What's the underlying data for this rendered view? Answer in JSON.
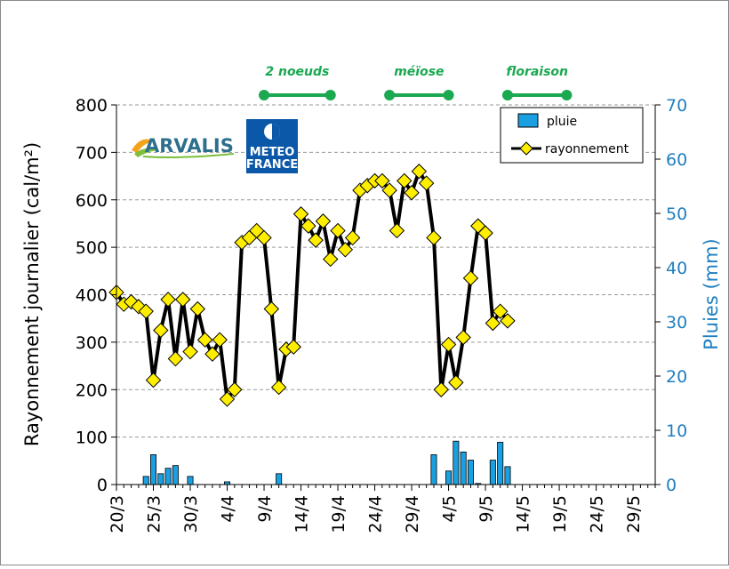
{
  "chart_data": {
    "type": "bar+line",
    "x_ticks": [
      "20/3",
      "25/3",
      "30/3",
      "4/4",
      "9/4",
      "14/4",
      "19/4",
      "24/4",
      "29/4",
      "4/5",
      "9/5",
      "14/5",
      "19/5",
      "24/5",
      "29/5"
    ],
    "ylabel_left": "Rayonnement journalier (cal/m²)",
    "ylabel_right": "Pluies (mm)",
    "ylim_left": [
      0,
      800
    ],
    "yticks_left": [
      0,
      100,
      200,
      300,
      400,
      500,
      600,
      700,
      800
    ],
    "ylim_right": [
      0,
      70
    ],
    "yticks_right": [
      0,
      10,
      20,
      30,
      40,
      50,
      60,
      70
    ],
    "x_range_days": [
      0,
      73
    ],
    "legend": {
      "placement": "top-right",
      "entries": [
        "pluie",
        "rayonnement"
      ]
    },
    "colors": {
      "bar": "#1aa0e0",
      "line": "#000000",
      "marker": "#ffee00",
      "stage": "#1aa850",
      "right_axis": "#1f7fc0"
    },
    "stages": [
      {
        "label": "2 noeuds",
        "start": 20,
        "end": 29
      },
      {
        "label": "méïose",
        "start": 37,
        "end": 45
      },
      {
        "label": "floraison",
        "start": 53,
        "end": 61
      }
    ],
    "series": [
      {
        "name": "pluie",
        "kind": "bar",
        "axis": "right",
        "points": [
          [
            4,
            1.5
          ],
          [
            5,
            5.5
          ],
          [
            6,
            2
          ],
          [
            7,
            3
          ],
          [
            8,
            3.5
          ],
          [
            10,
            1.5
          ],
          [
            15,
            0.5
          ],
          [
            22,
            2
          ],
          [
            43,
            5.5
          ],
          [
            45,
            2.5
          ],
          [
            46,
            8
          ],
          [
            47,
            6
          ],
          [
            48,
            4.5
          ],
          [
            49,
            0.2
          ],
          [
            51,
            4.5
          ],
          [
            52,
            7.8
          ],
          [
            53,
            3.3
          ]
        ]
      },
      {
        "name": "rayonnement",
        "kind": "line",
        "axis": "left",
        "points": [
          [
            0,
            405
          ],
          [
            1,
            380
          ],
          [
            2,
            385
          ],
          [
            3,
            375
          ],
          [
            4,
            365
          ],
          [
            5,
            220
          ],
          [
            6,
            325
          ],
          [
            7,
            390
          ],
          [
            8,
            265
          ],
          [
            9,
            390
          ],
          [
            10,
            280
          ],
          [
            11,
            370
          ],
          [
            12,
            305
          ],
          [
            13,
            275
          ],
          [
            14,
            305
          ],
          [
            15,
            180
          ],
          [
            16,
            200
          ],
          [
            17,
            510
          ],
          [
            18,
            520
          ],
          [
            19,
            535
          ],
          [
            20,
            520
          ],
          [
            21,
            370
          ],
          [
            22,
            205
          ],
          [
            23,
            285
          ],
          [
            24,
            290
          ],
          [
            25,
            570
          ],
          [
            26,
            545
          ],
          [
            27,
            515
          ],
          [
            28,
            555
          ],
          [
            29,
            475
          ],
          [
            30,
            535
          ],
          [
            31,
            495
          ],
          [
            32,
            520
          ],
          [
            33,
            620
          ],
          [
            34,
            630
          ],
          [
            35,
            640
          ],
          [
            36,
            640
          ],
          [
            37,
            620
          ],
          [
            38,
            535
          ],
          [
            39,
            640
          ],
          [
            40,
            615
          ],
          [
            41,
            660
          ],
          [
            42,
            635
          ],
          [
            43,
            520
          ],
          [
            44,
            200
          ],
          [
            45,
            295
          ],
          [
            46,
            215
          ],
          [
            47,
            310
          ],
          [
            48,
            435
          ],
          [
            49,
            545
          ],
          [
            50,
            530
          ],
          [
            51,
            340
          ],
          [
            52,
            365
          ],
          [
            53,
            345
          ]
        ]
      }
    ]
  },
  "logos": {
    "arvalis": "ARVALIS",
    "meteo_line1": "METEO",
    "meteo_line2": "FRANCE"
  }
}
